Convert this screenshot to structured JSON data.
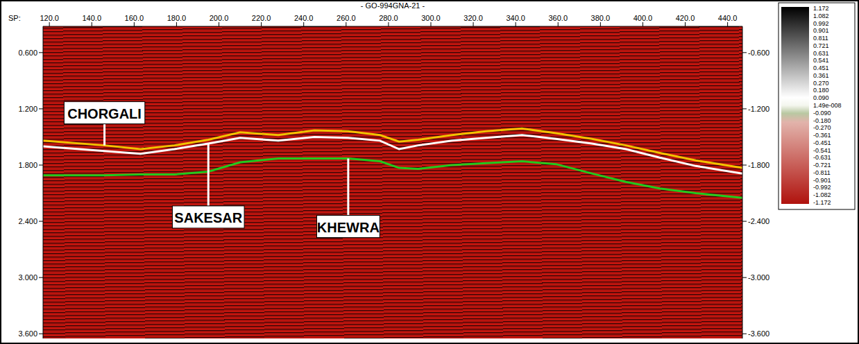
{
  "chart_data": {
    "type": "line",
    "title": "- GO-994GNA-21 -",
    "x_label": "SP:",
    "x": [
      117,
      146,
      163,
      179,
      195,
      210,
      228,
      245,
      261,
      276,
      285,
      294,
      310,
      326,
      343,
      359,
      376,
      392,
      408,
      425,
      447
    ],
    "series": [
      {
        "name": "CHORGALI",
        "color": "#f2c200",
        "line_style": "solid",
        "values": [
          1.54,
          1.59,
          1.63,
          1.59,
          1.53,
          1.45,
          1.48,
          1.43,
          1.44,
          1.48,
          1.55,
          1.53,
          1.48,
          1.44,
          1.41,
          1.46,
          1.52,
          1.59,
          1.67,
          1.75,
          1.83
        ]
      },
      {
        "name": "SAKESAR",
        "color": "#ffffff",
        "line_style": "solid",
        "values": [
          1.6,
          1.65,
          1.68,
          1.63,
          1.57,
          1.51,
          1.54,
          1.5,
          1.51,
          1.54,
          1.63,
          1.59,
          1.54,
          1.51,
          1.48,
          1.52,
          1.57,
          1.63,
          1.72,
          1.81,
          1.89
        ]
      },
      {
        "name": "KHEWRA",
        "color": "#22c91e",
        "line_style": "solid",
        "values": [
          1.91,
          1.91,
          1.9,
          1.9,
          1.87,
          1.77,
          1.73,
          1.73,
          1.73,
          1.76,
          1.83,
          1.84,
          1.8,
          1.78,
          1.76,
          1.79,
          1.89,
          1.98,
          2.05,
          2.1,
          2.15
        ]
      }
    ],
    "xlim": [
      117,
      447
    ],
    "xticks": [
      {
        "value": 120,
        "label": "120.0"
      },
      {
        "value": 140,
        "label": "140.0"
      },
      {
        "value": 160,
        "label": "160.0"
      },
      {
        "value": 180,
        "label": "180.0"
      },
      {
        "value": 200,
        "label": "200.0"
      },
      {
        "value": 220,
        "label": "220.0"
      },
      {
        "value": 240,
        "label": "240.0"
      },
      {
        "value": 260,
        "label": "260.0"
      },
      {
        "value": 280,
        "label": "280.0"
      },
      {
        "value": 300,
        "label": "300.0"
      },
      {
        "value": 320,
        "label": "320.0"
      },
      {
        "value": 340,
        "label": "340.0"
      },
      {
        "value": 360,
        "label": "360.0"
      },
      {
        "value": 380,
        "label": "380.0"
      },
      {
        "value": 400,
        "label": "400.0"
      },
      {
        "value": 420,
        "label": "420.0"
      },
      {
        "value": 440,
        "label": "440.0"
      }
    ],
    "ylim": [
      0.32,
      3.65
    ],
    "yticks": [
      {
        "value": 0.6,
        "label": "0.600"
      },
      {
        "value": 1.2,
        "label": "1.200"
      },
      {
        "value": 1.8,
        "label": "1.800"
      },
      {
        "value": 2.4,
        "label": "2.400"
      },
      {
        "value": 3.0,
        "label": "3.000"
      },
      {
        "value": 3.6,
        "label": "3.600"
      }
    ],
    "y2lim": [
      -3.65,
      -0.32
    ],
    "y2ticks": [
      {
        "value": -0.6,
        "label": "-0.600"
      },
      {
        "value": -1.2,
        "label": "-1.200"
      },
      {
        "value": -1.8,
        "label": "-1.800"
      },
      {
        "value": -2.4,
        "label": "-2.400"
      },
      {
        "value": -3.0,
        "label": "-3.000"
      },
      {
        "value": -3.6,
        "label": "-3.600"
      }
    ],
    "grid": false,
    "colorbar": {
      "range": [
        -1.172,
        1.172
      ],
      "ticks": [
        1.172,
        1.082,
        0.992,
        0.901,
        0.811,
        0.721,
        0.631,
        0.541,
        0.451,
        0.361,
        {
          "value": 0.27,
          "label": "0.270"
        },
        {
          "value": 0.18,
          "label": "0.180"
        },
        {
          "value": 0.09,
          "label": "0.090"
        },
        {
          "value": 1.49e-08,
          "label": "1.49e-008"
        },
        {
          "value": -0.09,
          "label": "-0.090"
        },
        {
          "value": -0.18,
          "label": "-0.180"
        },
        {
          "value": -0.27,
          "label": "-0.270"
        },
        -0.361,
        -0.451,
        -0.541,
        -0.631,
        -0.721,
        -0.811,
        -0.901,
        -0.992,
        -1.082,
        -1.172
      ]
    }
  }
}
